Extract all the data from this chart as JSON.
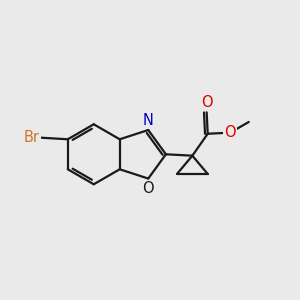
{
  "bg_color": "#eaeaea",
  "bond_color": "#1a1a1a",
  "bond_width": 1.6,
  "atom_colors": {
    "Br": "#cc7722",
    "N": "#0000cc",
    "O": "#dd0000"
  },
  "font_size": 10.5,
  "figsize": [
    3.0,
    3.0
  ],
  "dpi": 100,
  "xlim": [
    -2.8,
    2.8
  ],
  "ylim": [
    -2.0,
    2.0
  ]
}
